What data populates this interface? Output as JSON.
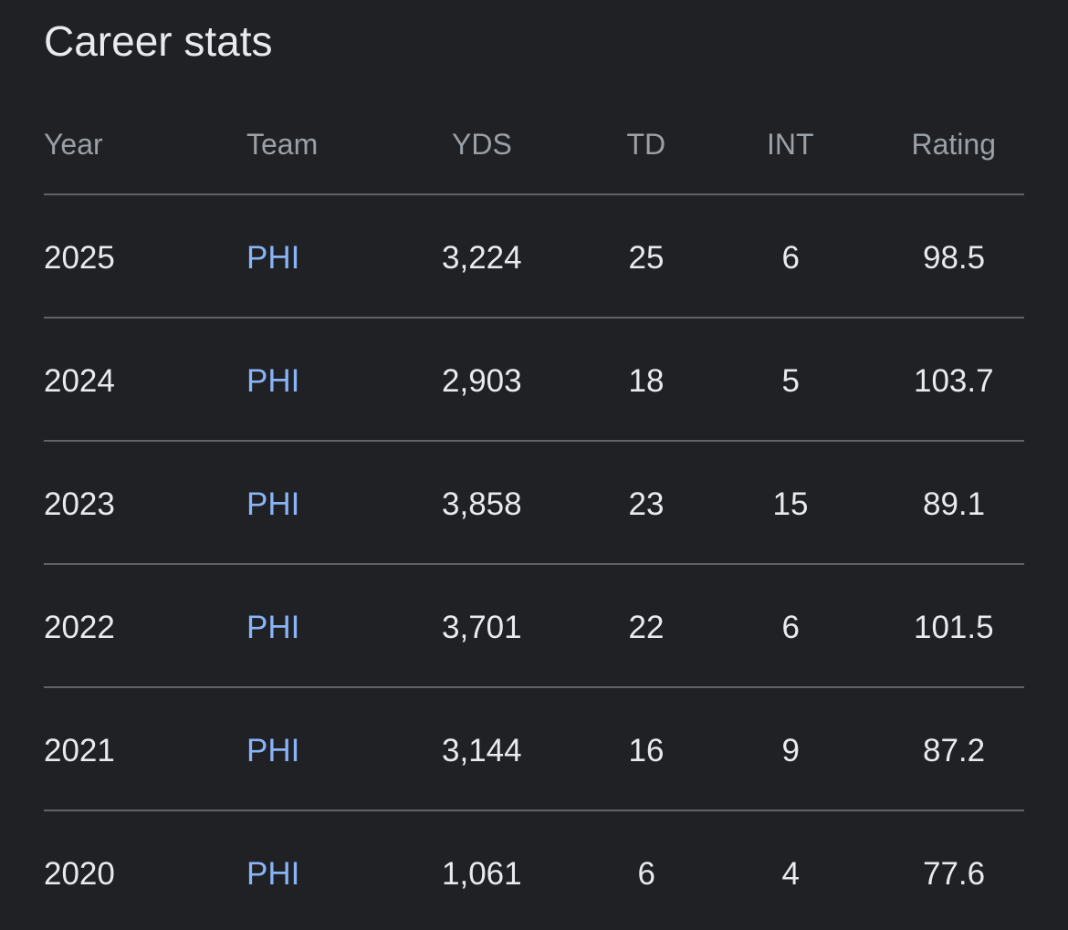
{
  "header": {
    "title": "Career stats"
  },
  "table": {
    "columns": [
      "Year",
      "Team",
      "YDS",
      "TD",
      "INT",
      "Rating"
    ],
    "rows": [
      [
        "2025",
        "PHI",
        "3,224",
        "25",
        "6",
        "98.5"
      ],
      [
        "2024",
        "PHI",
        "2,903",
        "18",
        "5",
        "103.7"
      ],
      [
        "2023",
        "PHI",
        "3,858",
        "23",
        "15",
        "89.1"
      ],
      [
        "2022",
        "PHI",
        "3,701",
        "22",
        "6",
        "101.5"
      ],
      [
        "2021",
        "PHI",
        "3,144",
        "16",
        "9",
        "87.2"
      ],
      [
        "2020",
        "PHI",
        "1,061",
        "6",
        "4",
        "77.6"
      ]
    ]
  }
}
